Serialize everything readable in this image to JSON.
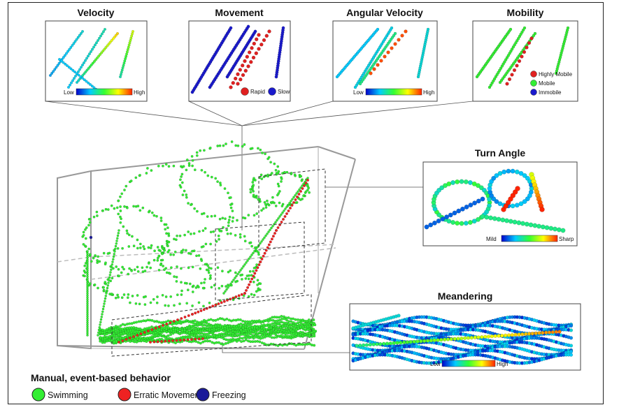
{
  "panels": {
    "velocity": {
      "title": "Velocity",
      "scale_low": "Low",
      "scale_high": "High"
    },
    "movement": {
      "title": "Movement",
      "legend": [
        "Rapid",
        "Slow"
      ]
    },
    "angular_velocity": {
      "title": "Angular Velocity",
      "scale_low": "Low",
      "scale_high": "High"
    },
    "mobility": {
      "title": "Mobility",
      "legend": [
        "Highly Mobile",
        "Mobile",
        "Immobile"
      ]
    },
    "turn_angle": {
      "title": "Turn Angle",
      "scale_low": "Mild",
      "scale_high": "Sharp"
    },
    "meandering": {
      "title": "Meandering",
      "scale_low": "Low",
      "scale_high": "High"
    }
  },
  "legend": {
    "title": "Manual, event-based behavior",
    "items": [
      {
        "label": "Swimming",
        "color": "#33ee33"
      },
      {
        "label": "Erratic Movement",
        "color": "#ee2222"
      },
      {
        "label": "Freezing",
        "color": "#1a1a99"
      }
    ]
  },
  "colors": {
    "swim": "#33ee33",
    "erratic": "#ee2222",
    "freeze": "#1a1a99",
    "slow": "#1a1acc",
    "rapid": "#e02020"
  }
}
